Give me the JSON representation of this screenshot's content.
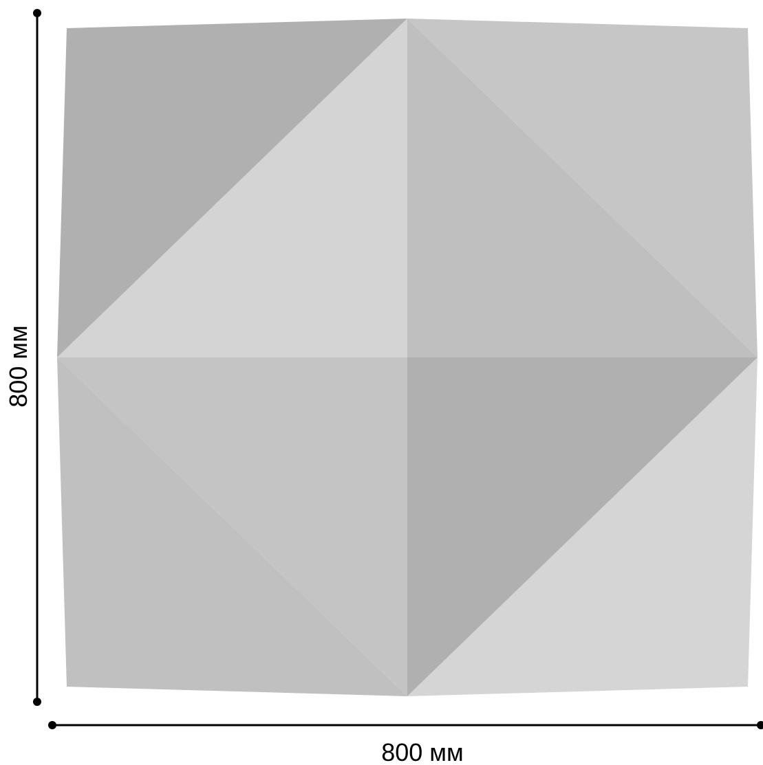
{
  "dimensions": {
    "height_label": "800 мм",
    "width_label": "800 мм"
  },
  "colors": {
    "background": "#ffffff",
    "line": "#000000",
    "facet_light": "#d4d4d4",
    "facet_mid": "#c4c4c4",
    "facet_mid_alt": "#bfbfbf",
    "facet_dark": "#b0b0b0"
  }
}
